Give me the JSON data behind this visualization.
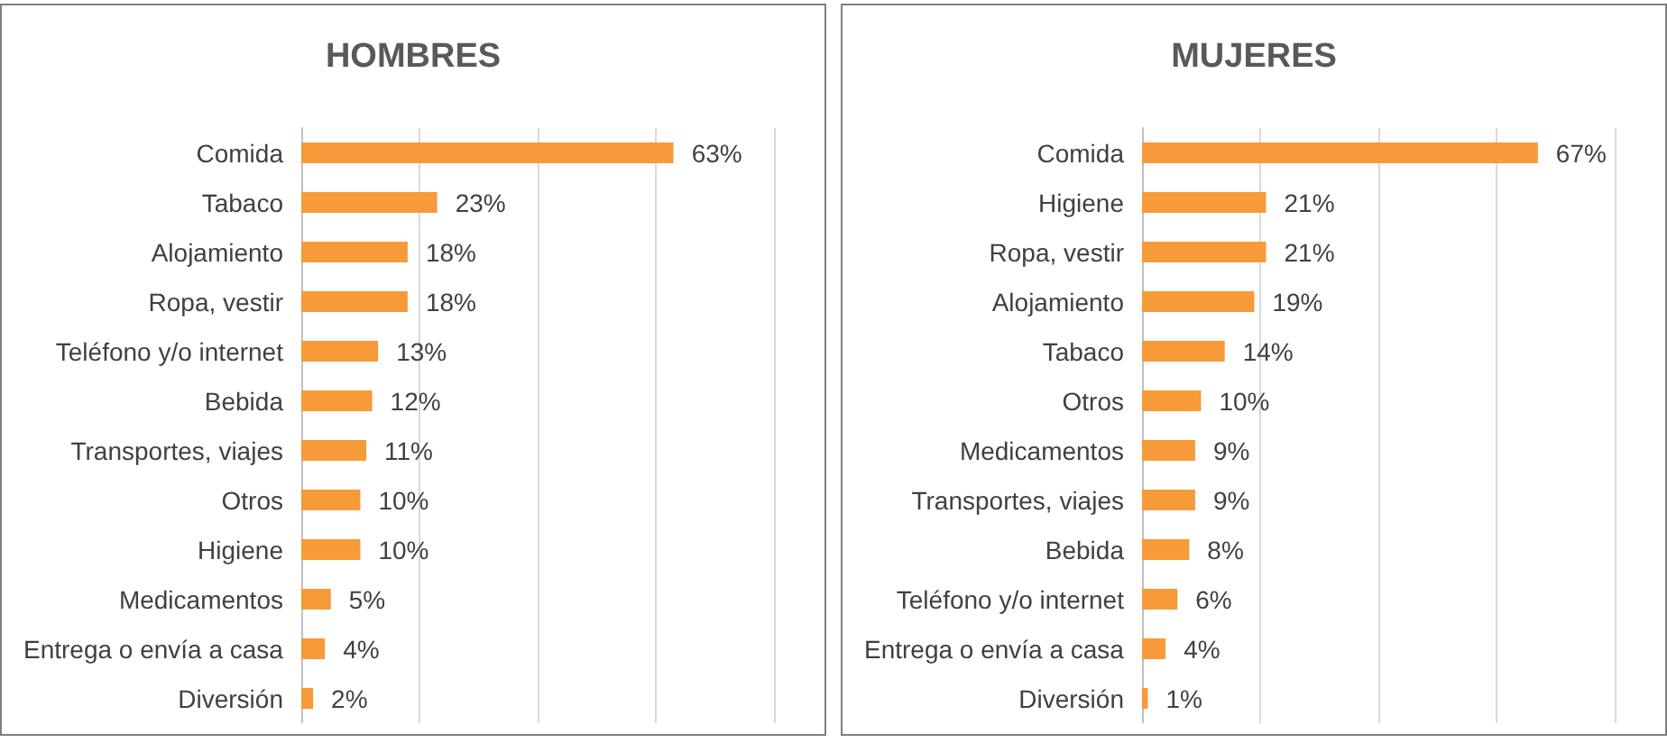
{
  "chart_data": [
    {
      "type": "bar",
      "orientation": "horizontal",
      "title": "HOMBRES",
      "categories": [
        "Comida",
        "Tabaco",
        "Alojamiento",
        "Ropa, vestir",
        "Teléfono y/o internet",
        "Bebida",
        "Transportes, viajes",
        "Otros",
        "Higiene",
        "Medicamentos",
        "Entrega o envía a casa",
        "Diversión"
      ],
      "values": [
        63,
        23,
        18,
        18,
        13,
        12,
        11,
        10,
        10,
        5,
        4,
        2
      ],
      "value_labels": [
        "63%",
        "23%",
        "18%",
        "18%",
        "13%",
        "12%",
        "11%",
        "10%",
        "10%",
        "5%",
        "4%",
        "2%"
      ],
      "color": "#f79a3a",
      "xlim": [
        0,
        80
      ],
      "xticks": [
        {
          "value": 0,
          "label": null
        },
        {
          "value": 20,
          "label": null
        },
        {
          "value": 40,
          "label": null
        },
        {
          "value": 60,
          "label": null
        },
        {
          "value": 80,
          "label": null
        }
      ],
      "tick_labels": "y",
      "grid": "x"
    },
    {
      "type": "bar",
      "orientation": "horizontal",
      "title": "MUJERES",
      "categories": [
        "Comida",
        "Higiene",
        "Ropa, vestir",
        "Alojamiento",
        "Tabaco",
        "Otros",
        "Medicamentos",
        "Transportes, viajes",
        "Bebida",
        "Teléfono y/o internet",
        "Entrega o envía a casa",
        "Diversión"
      ],
      "values": [
        67,
        21,
        21,
        19,
        14,
        10,
        9,
        9,
        8,
        6,
        4,
        1
      ],
      "value_labels": [
        "67%",
        "21%",
        "21%",
        "19%",
        "14%",
        "10%",
        "9%",
        "9%",
        "8%",
        "6%",
        "4%",
        "1%"
      ],
      "color": "#f79a3a",
      "xlim": [
        0,
        80
      ],
      "xticks": [
        {
          "value": 0,
          "label": null
        },
        {
          "value": 20,
          "label": null
        },
        {
          "value": 40,
          "label": null
        },
        {
          "value": 60,
          "label": null
        },
        {
          "value": 80,
          "label": null
        }
      ],
      "tick_labels": "y",
      "grid": "x"
    }
  ]
}
